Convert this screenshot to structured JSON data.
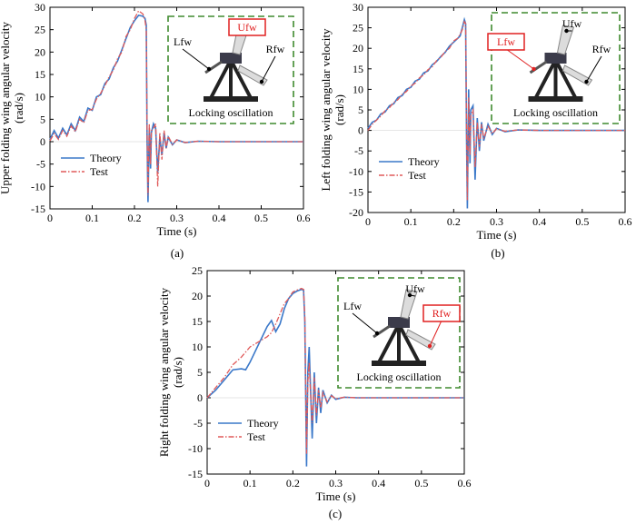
{
  "colors": {
    "theory": "#3a78c9",
    "test": "#e05a5a",
    "inset_border": "#3f8a2e",
    "highlight": "#e02020"
  },
  "chart_data": [
    {
      "type": "line",
      "caption": "(a)",
      "xlabel": "Time (s)",
      "ylabel": "Upper folding wing angular velocity (rad/s)",
      "ylabel_lines": [
        "Upper folding wing angular velocity",
        "(rad/s)"
      ],
      "xlim": [
        0,
        0.6
      ],
      "ylim": [
        -15,
        30
      ],
      "xticks": [
        "0",
        "0.1",
        "0.2",
        "0.3",
        "0.4",
        "0.5",
        "0.6"
      ],
      "yticks": [
        "-15",
        "-10",
        "-5",
        "0",
        "5",
        "10",
        "15",
        "20",
        "25",
        "30"
      ],
      "legend_position": "bottom-left",
      "inset": {
        "labels": {
          "upper": "Ufw",
          "left": "Lfw",
          "right": "Rfw"
        },
        "highlighted": "upper",
        "caption": "Locking oscillation"
      },
      "series": [
        {
          "name": "Theory",
          "style": "solid",
          "x": [
            0,
            0.01,
            0.02,
            0.03,
            0.04,
            0.05,
            0.06,
            0.07,
            0.08,
            0.09,
            0.1,
            0.11,
            0.12,
            0.13,
            0.14,
            0.15,
            0.16,
            0.17,
            0.18,
            0.19,
            0.2,
            0.21,
            0.22,
            0.225,
            0.228,
            0.23,
            0.232,
            0.235,
            0.238,
            0.24,
            0.245,
            0.25,
            0.255,
            0.26,
            0.265,
            0.27,
            0.275,
            0.28,
            0.29,
            0.3,
            0.32,
            0.35,
            0.4,
            0.5,
            0.6
          ],
          "y": [
            0.5,
            2.5,
            0.8,
            3,
            1.5,
            4,
            2.5,
            5.5,
            4.5,
            7.5,
            7,
            10,
            10.5,
            13,
            14,
            16.5,
            18,
            20.5,
            23,
            25.5,
            27,
            28.2,
            28,
            27.5,
            26,
            0,
            -13.5,
            3,
            -6,
            2,
            4,
            3,
            -7,
            1,
            -3,
            2,
            -1.5,
            1,
            -0.7,
            0.4,
            -0.2,
            0.1,
            0,
            0,
            0
          ]
        },
        {
          "name": "Test",
          "style": "dash-dot",
          "x": [
            0,
            0.01,
            0.02,
            0.03,
            0.04,
            0.05,
            0.06,
            0.07,
            0.08,
            0.09,
            0.1,
            0.11,
            0.12,
            0.13,
            0.14,
            0.15,
            0.16,
            0.17,
            0.18,
            0.19,
            0.2,
            0.21,
            0.22,
            0.225,
            0.228,
            0.23,
            0.232,
            0.235,
            0.238,
            0.24,
            0.245,
            0.25,
            0.255,
            0.26,
            0.265,
            0.27,
            0.275,
            0.28,
            0.29,
            0.3,
            0.32,
            0.35,
            0.4,
            0.5,
            0.6
          ],
          "y": [
            0.2,
            1.8,
            0.5,
            2.5,
            1.2,
            3.5,
            2.2,
            5,
            4.2,
            7,
            7.2,
            9.5,
            10.8,
            12.5,
            14.5,
            16,
            18.5,
            20,
            23.5,
            25,
            27.5,
            29.2,
            28.5,
            27,
            25,
            2,
            -12,
            4,
            -5,
            2.5,
            3,
            4,
            -10,
            2,
            -4,
            2.5,
            -1.5,
            1.2,
            -0.6,
            0.4,
            -0.2,
            0.1,
            0,
            0,
            0
          ]
        }
      ]
    },
    {
      "type": "line",
      "caption": "(b)",
      "xlabel": "Time (s)",
      "ylabel": "Left folding wing angular velocity (rad/s)",
      "ylabel_lines": [
        "Left folding wing angular velocity",
        "(rad/s)"
      ],
      "xlim": [
        0,
        0.6
      ],
      "ylim": [
        -20,
        30
      ],
      "xticks": [
        "0",
        "0.1",
        "0.2",
        "0.3",
        "0.4",
        "0.5",
        "0.6"
      ],
      "yticks": [
        "-20",
        "-15",
        "-10",
        "-5",
        "0",
        "5",
        "10",
        "15",
        "20",
        "25",
        "30"
      ],
      "legend_position": "bottom-left",
      "inset": {
        "labels": {
          "upper": "Ufw",
          "left": "Lfw",
          "right": "Rfw"
        },
        "highlighted": "left",
        "caption": "Locking oscillation"
      },
      "series": [
        {
          "name": "Theory",
          "style": "solid",
          "x": [
            0,
            0.01,
            0.02,
            0.03,
            0.04,
            0.05,
            0.06,
            0.07,
            0.08,
            0.09,
            0.1,
            0.11,
            0.12,
            0.13,
            0.14,
            0.15,
            0.16,
            0.17,
            0.18,
            0.19,
            0.2,
            0.21,
            0.215,
            0.22,
            0.225,
            0.228,
            0.23,
            0.232,
            0.235,
            0.238,
            0.24,
            0.245,
            0.25,
            0.255,
            0.26,
            0.265,
            0.27,
            0.28,
            0.29,
            0.3,
            0.32,
            0.35,
            0.4,
            0.5,
            0.6
          ],
          "y": [
            0.5,
            2,
            2.5,
            4,
            4.5,
            6,
            6.5,
            8,
            8.5,
            10,
            10.5,
            12,
            12.5,
            14,
            14.5,
            16,
            16.8,
            18,
            19,
            20.5,
            21.5,
            22.5,
            23,
            25,
            27,
            26,
            -2,
            -19,
            10,
            -8,
            5,
            6,
            -12,
            3,
            -5,
            2,
            -2.5,
            1.5,
            -1,
            0.5,
            -0.3,
            0.1,
            0,
            0,
            0
          ]
        },
        {
          "name": "Test",
          "style": "dash-dot",
          "x": [
            0,
            0.01,
            0.02,
            0.03,
            0.04,
            0.05,
            0.06,
            0.07,
            0.08,
            0.09,
            0.1,
            0.11,
            0.12,
            0.13,
            0.14,
            0.15,
            0.16,
            0.17,
            0.18,
            0.19,
            0.2,
            0.21,
            0.215,
            0.22,
            0.225,
            0.228,
            0.23,
            0.232,
            0.235,
            0.238,
            0.24,
            0.245,
            0.25,
            0.255,
            0.26,
            0.265,
            0.27,
            0.28,
            0.29,
            0.3,
            0.32,
            0.35,
            0.4,
            0.5,
            0.6
          ],
          "y": [
            0,
            1.5,
            2.5,
            3.5,
            4.8,
            5.5,
            6.8,
            7.5,
            8.8,
            9.5,
            10.8,
            11.5,
            12.8,
            13.5,
            14.8,
            15.5,
            17,
            17.8,
            19.2,
            20,
            21.8,
            22.5,
            23.5,
            24.5,
            26.5,
            26,
            0,
            -17,
            8,
            -6,
            4,
            5,
            -9,
            2,
            -4,
            1.5,
            -2,
            1,
            -0.8,
            0.4,
            -0.2,
            0.1,
            0,
            0,
            0
          ]
        }
      ]
    },
    {
      "type": "line",
      "caption": "(c)",
      "xlabel": "Time (s)",
      "ylabel": "Right folding wing angular velocity (rad/s)",
      "ylabel_lines": [
        "Right folding wing angular velocity",
        "(rad/s)"
      ],
      "xlim": [
        0,
        0.6
      ],
      "ylim": [
        -15,
        25
      ],
      "xticks": [
        "0",
        "0.1",
        "0.2",
        "0.3",
        "0.4",
        "0.5",
        "0.6"
      ],
      "yticks": [
        "-15",
        "-10",
        "-5",
        "0",
        "5",
        "10",
        "15",
        "20",
        "25"
      ],
      "legend_position": "bottom-left",
      "inset": {
        "labels": {
          "upper": "Ufw",
          "left": "Lfw",
          "right": "Rfw"
        },
        "highlighted": "right",
        "caption": "Locking oscillation"
      },
      "series": [
        {
          "name": "Theory",
          "style": "solid",
          "x": [
            0,
            0.02,
            0.04,
            0.06,
            0.08,
            0.09,
            0.1,
            0.12,
            0.14,
            0.15,
            0.16,
            0.17,
            0.18,
            0.19,
            0.2,
            0.21,
            0.22,
            0.225,
            0.228,
            0.232,
            0.235,
            0.238,
            0.24,
            0.245,
            0.25,
            0.255,
            0.26,
            0.265,
            0.27,
            0.28,
            0.29,
            0.3,
            0.32,
            0.35,
            0.4,
            0.5,
            0.6
          ],
          "y": [
            0,
            1.5,
            3.5,
            5.5,
            5.7,
            5.5,
            7,
            10.5,
            14,
            15.2,
            13,
            14.5,
            17.5,
            19.5,
            20.5,
            21,
            21.3,
            21.2,
            15,
            -13.5,
            5,
            10,
            5,
            -8,
            5,
            -5,
            2,
            -3,
            1.5,
            -1,
            0.5,
            -0.3,
            0.1,
            0,
            0,
            0,
            0
          ]
        },
        {
          "name": "Test",
          "style": "dash-dot",
          "x": [
            0,
            0.02,
            0.04,
            0.06,
            0.08,
            0.09,
            0.1,
            0.12,
            0.14,
            0.15,
            0.16,
            0.17,
            0.18,
            0.19,
            0.2,
            0.21,
            0.22,
            0.225,
            0.228,
            0.232,
            0.235,
            0.238,
            0.24,
            0.245,
            0.25,
            0.255,
            0.26,
            0.265,
            0.27,
            0.28,
            0.29,
            0.3,
            0.32,
            0.35,
            0.4,
            0.5,
            0.6
          ],
          "y": [
            0,
            2,
            4,
            6.5,
            8,
            9,
            10,
            11,
            12,
            12.8,
            14.5,
            16.5,
            18.5,
            19.5,
            20.8,
            21.2,
            21.5,
            21.3,
            16,
            -11,
            3,
            7,
            3,
            -5,
            4,
            -3.5,
            1.5,
            -2,
            1,
            -0.8,
            0.4,
            -0.2,
            0.1,
            0,
            0,
            0,
            0
          ]
        }
      ]
    }
  ]
}
